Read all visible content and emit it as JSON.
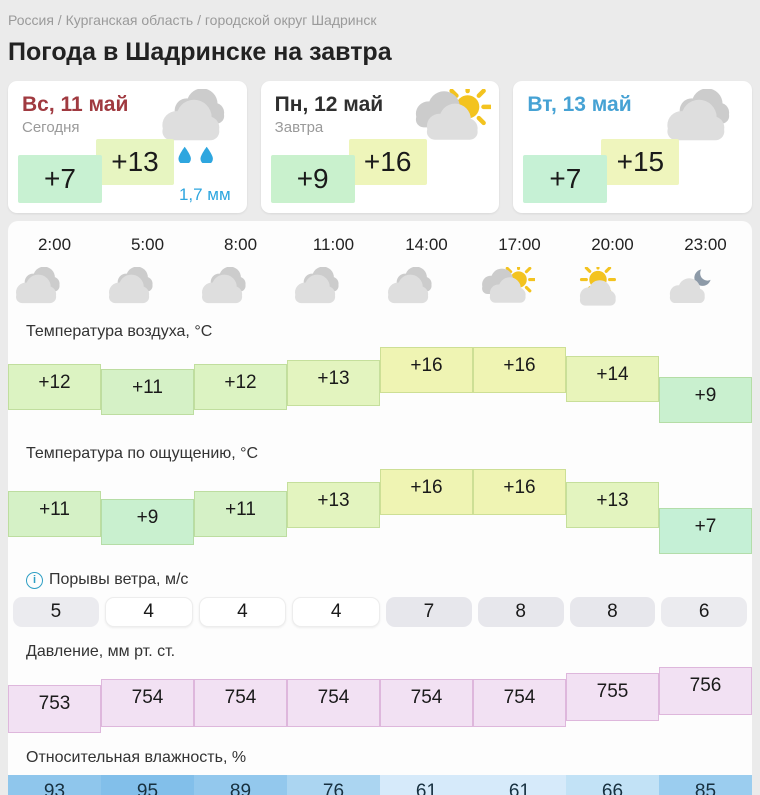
{
  "breadcrumb": {
    "text": "Россия / Курганская область / городской округ Шадринск"
  },
  "title": "Погода в Шадринске на завтра",
  "day_cards": [
    {
      "date": "Вс, 11 май",
      "date_color": "#a03a40",
      "subtitle": "Сегодня",
      "t_min": "+7",
      "t_max": "+13",
      "min_bg": "#c8f1d2",
      "max_bg": "#e7f5c1",
      "icon": "rain-cloud",
      "precip": "1,7 мм"
    },
    {
      "date": "Пн, 12 май",
      "date_color": "#2f2f2f",
      "subtitle": "Завтра",
      "t_min": "+9",
      "t_max": "+16",
      "min_bg": "#c9f1cd",
      "max_bg": "#eef5ba",
      "icon": "sun-cloud",
      "precip": ""
    },
    {
      "date": "Вт, 13 май",
      "date_color": "#46a2d4",
      "subtitle": "",
      "t_min": "+7",
      "t_max": "+15",
      "min_bg": "#c6f1d5",
      "max_bg": "#eff5bd",
      "icon": "clouds",
      "precip": ""
    }
  ],
  "hourly": {
    "hours": [
      "2:00",
      "5:00",
      "8:00",
      "11:00",
      "14:00",
      "17:00",
      "20:00",
      "23:00"
    ],
    "icons": [
      "clouds",
      "clouds",
      "clouds",
      "clouds",
      "clouds",
      "sun-cloud",
      "sun-over-cloud",
      "moon-cloud"
    ],
    "rows": [
      {
        "id": "air_temp",
        "label": "Температура воздуха, °C",
        "type": "step",
        "values": [
          "+12",
          "+11",
          "+12",
          "+13",
          "+16",
          "+16",
          "+14",
          "+9"
        ],
        "nums": [
          12,
          11,
          12,
          13,
          16,
          16,
          14,
          9
        ],
        "colors": [
          "#dcf3c2",
          "#d5f1c6",
          "#dcf3c2",
          "#e3f4bf",
          "#eff4b3",
          "#eff4b3",
          "#e8f4ba",
          "#c9f0cf"
        ]
      },
      {
        "id": "feels_temp",
        "label": "Температура по ощущению, °C",
        "type": "step",
        "values": [
          "+11",
          "+9",
          "+11",
          "+13",
          "+16",
          "+16",
          "+13",
          "+7"
        ],
        "nums": [
          11,
          9,
          11,
          13,
          16,
          16,
          13,
          7
        ],
        "colors": [
          "#d5f1c6",
          "#c9f0cf",
          "#d5f1c6",
          "#e3f4bf",
          "#eff4b3",
          "#eff4b3",
          "#e3f4bf",
          "#c5f0d6"
        ]
      },
      {
        "id": "wind",
        "label": "Порывы ветра, м/с",
        "type": "pill",
        "info_icon": "i",
        "values": [
          "5",
          "4",
          "4",
          "4",
          "7",
          "8",
          "8",
          "6"
        ],
        "colors": [
          "#ebebef",
          "#ffffff",
          "#ffffff",
          "#ffffff",
          "#e7e7ec",
          "#e7e7ec",
          "#e7e7ec",
          "#ebebef"
        ]
      },
      {
        "id": "pressure",
        "label": "Давление, мм рт. ст.",
        "type": "step",
        "values": [
          "753",
          "754",
          "754",
          "754",
          "754",
          "754",
          "755",
          "756"
        ],
        "nums": [
          753,
          754,
          754,
          754,
          754,
          754,
          755,
          756
        ],
        "colors": [
          "#f2e1f3",
          "#f2e1f3",
          "#f2e1f3",
          "#f2e1f3",
          "#f2e1f3",
          "#f2e1f3",
          "#f2e1f3",
          "#f2e1f3"
        ]
      },
      {
        "id": "humidity",
        "label": "Относительная влажность, %",
        "type": "strip",
        "values": [
          "93",
          "95",
          "89",
          "76",
          "61",
          "61",
          "66",
          "85"
        ],
        "colors": [
          "#8fc6ec",
          "#82bfea",
          "#93c8ed",
          "#abd5f1",
          "#d6eafa",
          "#d6eafa",
          "#c2e2f6",
          "#9bcdef"
        ],
        "baseline_color": "#66ade4"
      }
    ]
  },
  "icon_colors": {
    "cloud_front": "#dedede",
    "cloud_back": "#cccccc",
    "sun": "#f3c31f",
    "moon": "#8d9aa8",
    "rain": "#2ea6df"
  }
}
